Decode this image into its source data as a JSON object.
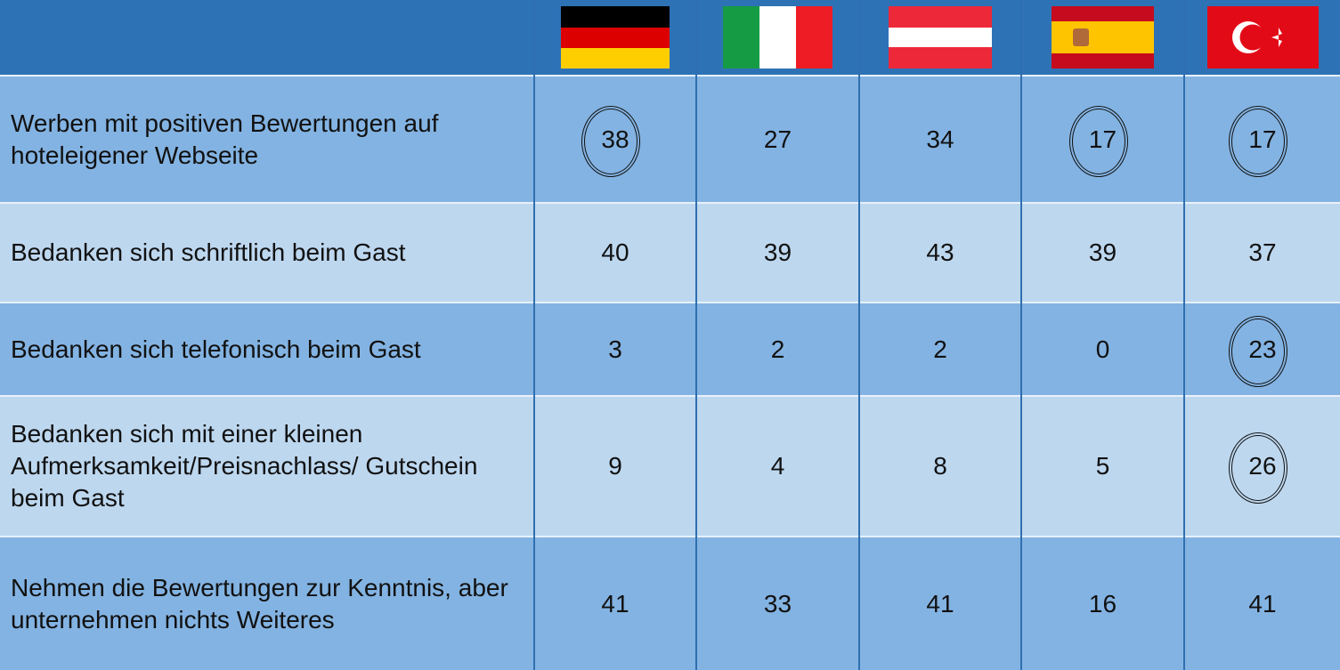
{
  "table": {
    "rows": [
      {
        "label": "Werben mit positiven Bewertungen auf hoteleigener Webseite",
        "values": [
          38,
          27,
          34,
          17,
          17
        ]
      },
      {
        "label": "Bedanken sich schriftlich beim Gast",
        "values": [
          40,
          39,
          43,
          39,
          37
        ]
      },
      {
        "label": "Bedanken sich telefonisch beim Gast",
        "values": [
          3,
          2,
          2,
          0,
          23
        ]
      },
      {
        "label": "Bedanken sich mit einer kleinen Aufmerksamkeit/Preisnachlass/ Gutschein beim Gast",
        "values": [
          9,
          4,
          8,
          5,
          26
        ]
      },
      {
        "label": "Nehmen die Bewertungen zur Kenntnis, aber unternehmen nichts Weiteres",
        "values": [
          41,
          33,
          41,
          16,
          41
        ]
      }
    ]
  }
}
